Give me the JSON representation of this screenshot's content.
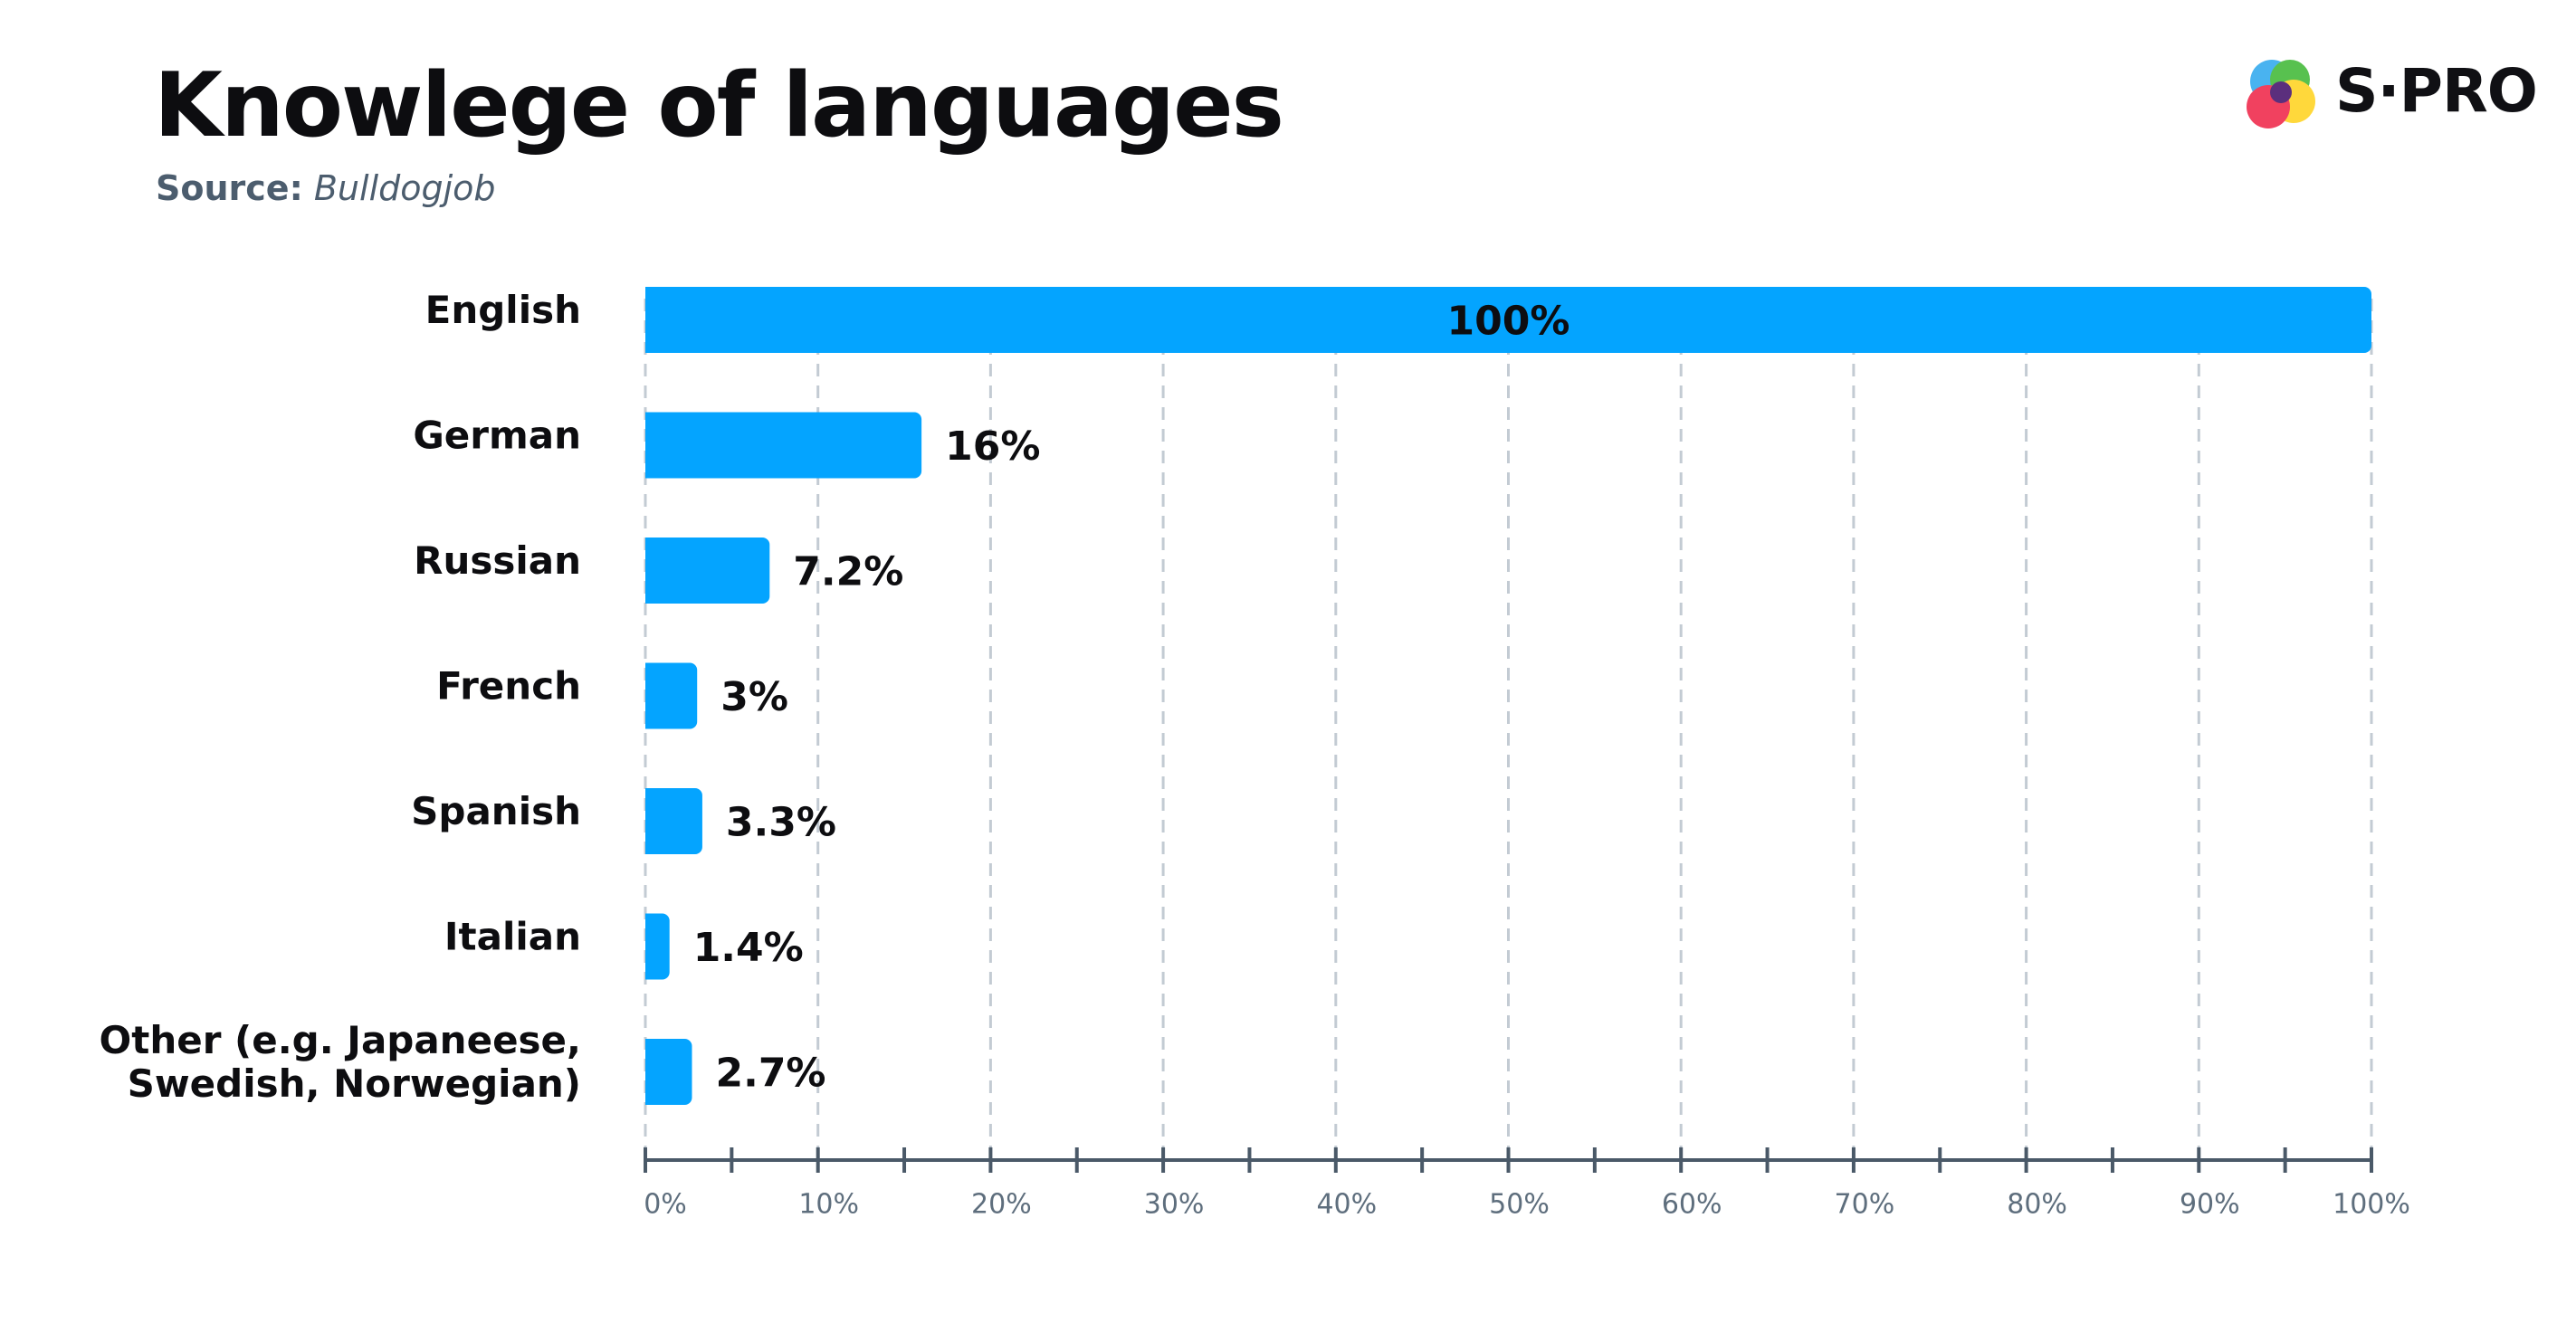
{
  "header": {
    "title": "Knowlege of languages",
    "source_label": "Source:",
    "source_name": "Bulldogjob",
    "logo_text": "S·PRO"
  },
  "colors": {
    "bar": "#04a4ff",
    "grid": "#c3cbd3",
    "axis": "#4a5968",
    "tick_label": "#5e6e7d",
    "text": "#0d0d10"
  },
  "chart_data": {
    "type": "bar",
    "orientation": "horizontal",
    "categories": [
      [
        "English"
      ],
      [
        "German"
      ],
      [
        "Russian"
      ],
      [
        "French"
      ],
      [
        "Spanish"
      ],
      [
        "Italian"
      ],
      [
        "Other (e.g. Japaneese,",
        "Swedish, Norwegian)"
      ]
    ],
    "values": [
      100,
      16,
      7.2,
      3,
      3.3,
      1.4,
      2.7
    ],
    "data_labels": [
      "100%",
      "16%",
      "7.2%",
      "3%",
      "3.3%",
      "1.4%",
      "2.7%"
    ],
    "title": "Knowlege of languages",
    "xlabel": "",
    "ylabel": "",
    "xlim": [
      0,
      100
    ],
    "x_ticks": [
      0,
      10,
      20,
      30,
      40,
      50,
      60,
      70,
      80,
      90,
      100
    ],
    "x_tick_labels": [
      "0%",
      "10%",
      "20%",
      "30%",
      "40%",
      "50%",
      "60%",
      "70%",
      "80%",
      "90%",
      "100%"
    ],
    "grid": "vertical dashed",
    "legend": "none"
  }
}
